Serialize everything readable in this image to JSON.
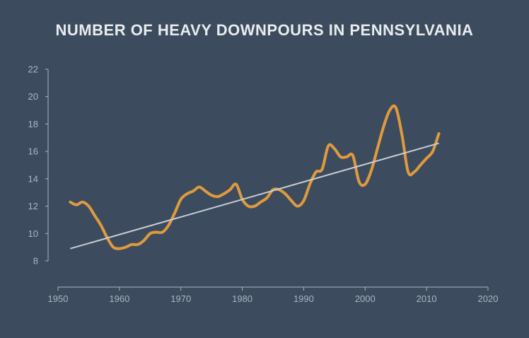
{
  "colors": {
    "background": "#3c4c5e",
    "series_line": "#e09a3e",
    "trend_line": "#c9cdd2",
    "axis": "#aab4c0",
    "title": "#e9ecef"
  },
  "chart_data": {
    "type": "line",
    "title": "NUMBER OF HEAVY DOWNPOURS IN PENNSYLVANIA",
    "xlabel": "",
    "ylabel": "",
    "xlim": [
      1950,
      2020
    ],
    "ylim": [
      8,
      22
    ],
    "x_ticks": [
      1950,
      1960,
      1970,
      1980,
      1990,
      2000,
      2010,
      2020
    ],
    "y_ticks": [
      8,
      10,
      12,
      14,
      16,
      18,
      20,
      22
    ],
    "grid": false,
    "legend": "none",
    "series": [
      {
        "role": "observed",
        "x": [
          1952,
          1953,
          1954,
          1955,
          1956,
          1957,
          1958,
          1959,
          1960,
          1961,
          1962,
          1963,
          1964,
          1965,
          1966,
          1967,
          1968,
          1969,
          1970,
          1971,
          1972,
          1973,
          1974,
          1975,
          1976,
          1977,
          1978,
          1979,
          1980,
          1981,
          1982,
          1983,
          1984,
          1985,
          1986,
          1987,
          1988,
          1989,
          1990,
          1991,
          1992,
          1993,
          1994,
          1995,
          1996,
          1997,
          1998,
          1999,
          2000,
          2001,
          2002,
          2003,
          2004,
          2005,
          2006,
          2007,
          2008,
          2009,
          2010,
          2011,
          2012
        ],
        "values": [
          12.3,
          12.1,
          12.3,
          12.0,
          11.3,
          10.6,
          9.7,
          9.0,
          8.9,
          9.0,
          9.2,
          9.2,
          9.5,
          10.0,
          10.1,
          10.1,
          10.6,
          11.5,
          12.5,
          12.9,
          13.1,
          13.4,
          13.1,
          12.8,
          12.7,
          12.9,
          13.2,
          13.6,
          12.5,
          12.0,
          12.0,
          12.3,
          12.6,
          13.2,
          13.2,
          12.9,
          12.4,
          12.0,
          12.4,
          13.6,
          14.5,
          14.7,
          16.4,
          16.2,
          15.6,
          15.6,
          15.7,
          13.8,
          13.6,
          14.6,
          16.2,
          17.8,
          19.0,
          19.2,
          17.2,
          14.5,
          14.5,
          15.0,
          15.5,
          16.0,
          17.3
        ]
      },
      {
        "role": "trend",
        "x": [
          1952,
          2012
        ],
        "values": [
          8.9,
          16.6
        ]
      }
    ]
  }
}
